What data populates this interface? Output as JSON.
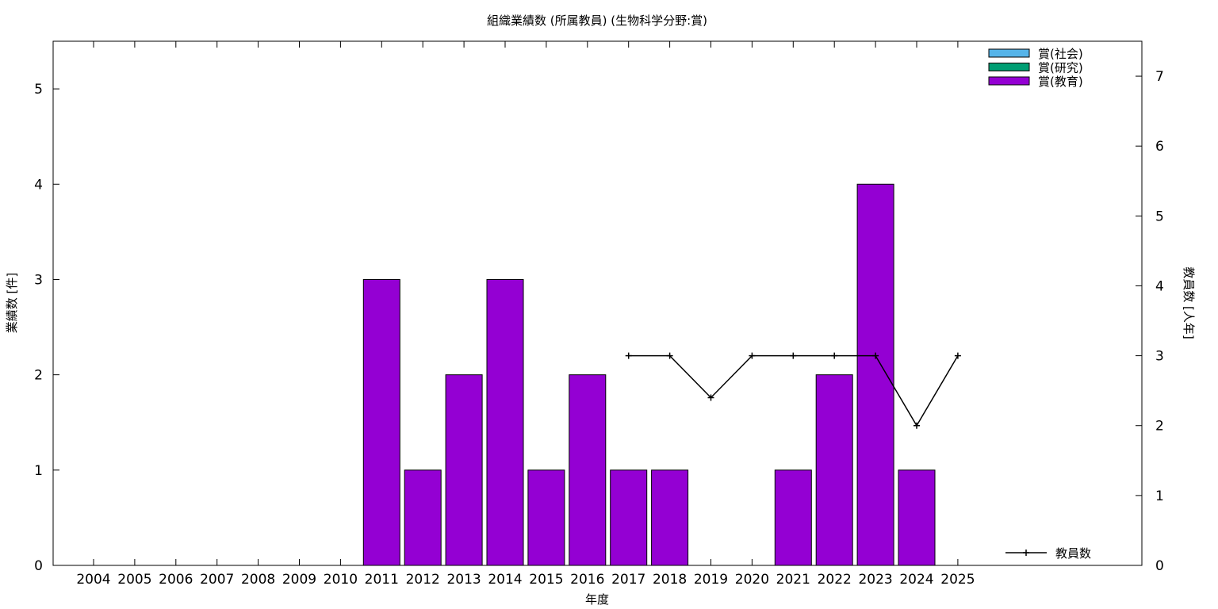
{
  "chart_data": {
    "type": "bar",
    "title": "組織業績数 (所属教員) (生物科学分野:賞)",
    "xlabel": "年度",
    "ylabel": "業績数 [件]",
    "y2label": "教員数 [人年]",
    "categories": [
      "2004",
      "2005",
      "2006",
      "2007",
      "2008",
      "2009",
      "2010",
      "2011",
      "2012",
      "2013",
      "2014",
      "2015",
      "2016",
      "2017",
      "2018",
      "2019",
      "2020",
      "2021",
      "2022",
      "2023",
      "2024",
      "2025"
    ],
    "ylim": [
      0,
      5.5
    ],
    "yticks": [
      0,
      1,
      2,
      3,
      4,
      5
    ],
    "y2lim": [
      0,
      7.5
    ],
    "y2ticks": [
      0,
      1,
      2,
      3,
      4,
      5,
      6,
      7
    ],
    "grid": false,
    "legend_position": "top-right",
    "series": [
      {
        "name": "賞(社会)",
        "color": "#56b4e9",
        "values": [
          0,
          0,
          0,
          0,
          0,
          0,
          0,
          0,
          0,
          0,
          0,
          0,
          0,
          0,
          0,
          0,
          0,
          0,
          0,
          0,
          0,
          0
        ]
      },
      {
        "name": "賞(研究)",
        "color": "#009e73",
        "values": [
          0,
          0,
          0,
          0,
          0,
          0,
          0,
          0,
          0,
          0,
          0,
          0,
          0,
          0,
          0,
          0,
          0,
          0,
          0,
          0,
          0,
          0
        ]
      },
      {
        "name": "賞(教育)",
        "color": "#9400d3",
        "values": [
          0,
          0,
          0,
          0,
          0,
          0,
          0,
          3,
          1,
          2,
          3,
          1,
          2,
          1,
          1,
          0,
          0,
          1,
          2,
          4,
          1,
          0
        ]
      }
    ],
    "line_series": {
      "name": "教員数",
      "color": "#000000",
      "axis": "y2",
      "x": [
        "2017",
        "2018",
        "2019",
        "2020",
        "2021",
        "2022",
        "2023",
        "2024",
        "2025"
      ],
      "values": [
        3,
        3,
        2.4,
        3,
        3,
        3,
        3,
        2,
        3
      ],
      "legend_position": "bottom-right"
    }
  }
}
